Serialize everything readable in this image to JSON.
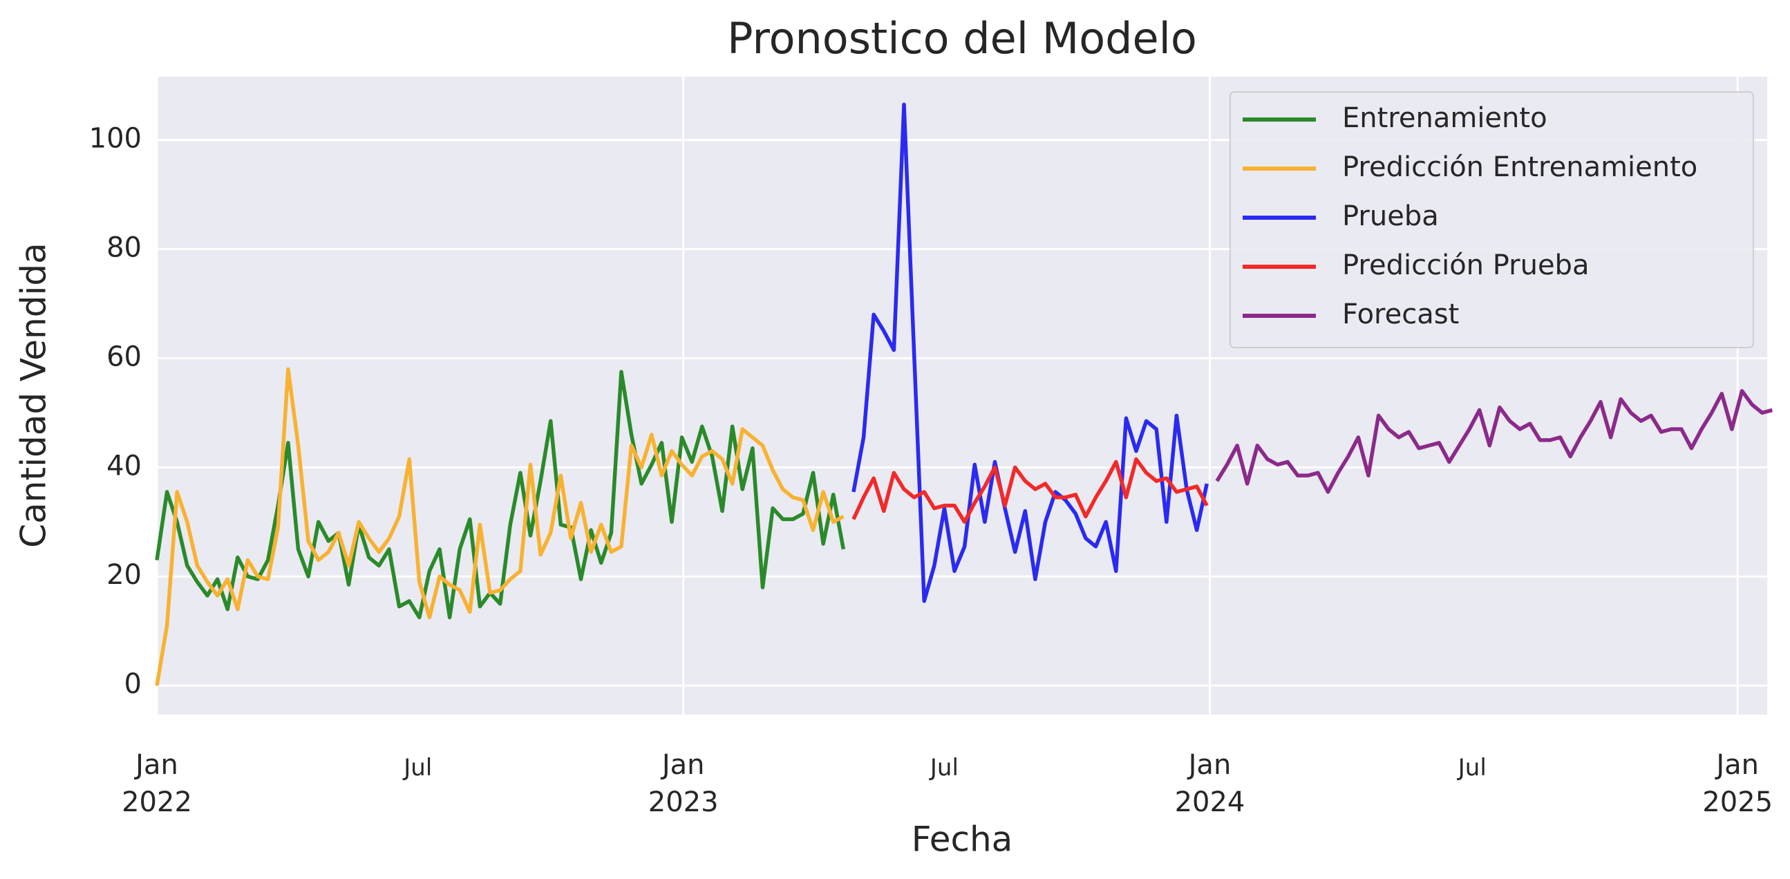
{
  "chart_data": {
    "type": "line",
    "title": "Pronostico del Modelo",
    "xlabel": "Fecha",
    "ylabel": "Cantidad Vendida",
    "xlim": [
      0,
      159.5
    ],
    "ylim": [
      -5.3,
      111.6
    ],
    "yticks": [
      0,
      20,
      40,
      60,
      80,
      100
    ],
    "xticks": [
      {
        "value": 0,
        "label": "Jan\n2022"
      },
      {
        "value": 52.14,
        "label": "Jan\n2023"
      },
      {
        "value": 104.29,
        "label": "Jan\n2024"
      },
      {
        "value": 156.57,
        "label": "Jan\n2025"
      }
    ],
    "xticks_minor": [
      {
        "value": 25.86,
        "label": "Jul"
      },
      {
        "value": 78,
        "label": "Jul"
      },
      {
        "value": 130.29,
        "label": "Jul"
      }
    ],
    "grid": true,
    "legend": "upper right",
    "series": [
      {
        "name": "Entrenamiento",
        "color": "#2a8a2a",
        "x": [
          0,
          1,
          2,
          3,
          4,
          5,
          6,
          7,
          8,
          9,
          10,
          11,
          12,
          13,
          14,
          15,
          16,
          17,
          18,
          19,
          20,
          21,
          22,
          23,
          24,
          25,
          26,
          27,
          28,
          29,
          30,
          31,
          32,
          33,
          34,
          35,
          36,
          37,
          38,
          39,
          40,
          41,
          42,
          43,
          44,
          45,
          46,
          47,
          48,
          49,
          50,
          51,
          52,
          53,
          54,
          55,
          56,
          57,
          58,
          59,
          60,
          61,
          62,
          63,
          64,
          65,
          66,
          67,
          68
        ],
        "values": [
          23,
          35.5,
          30,
          22,
          19,
          16.5,
          19.5,
          14,
          23.5,
          20,
          19.5,
          23,
          33,
          44.5,
          25,
          20,
          30,
          26.5,
          28,
          18.5,
          29.5,
          23.5,
          22,
          25,
          14.5,
          15.5,
          12.5,
          21,
          25,
          12.5,
          25,
          30.5,
          14.5,
          17,
          15,
          29.5,
          39,
          27.5,
          37.5,
          48.5,
          29.5,
          29,
          19.5,
          28.5,
          22.5,
          28,
          57.5,
          46,
          37,
          40.5,
          44.5,
          30,
          45.5,
          41,
          47.5,
          42,
          32,
          47.5,
          36,
          43.5,
          18,
          32.5,
          30.5,
          30.5,
          31.5,
          39,
          26,
          35,
          25
        ]
      },
      {
        "name": "Predicción Entrenamiento",
        "color": "#f8b232",
        "x": [
          0,
          1,
          2,
          3,
          4,
          5,
          6,
          7,
          8,
          9,
          10,
          11,
          12,
          13,
          14,
          15,
          16,
          17,
          18,
          19,
          20,
          21,
          22,
          23,
          24,
          25,
          26,
          27,
          28,
          29,
          30,
          31,
          32,
          33,
          34,
          35,
          36,
          37,
          38,
          39,
          40,
          41,
          42,
          43,
          44,
          45,
          46,
          47,
          48,
          49,
          50,
          51,
          52,
          53,
          54,
          55,
          56,
          57,
          58,
          59,
          60,
          61,
          62,
          63,
          64,
          65,
          66,
          67,
          68
        ],
        "values": [
          0,
          11,
          35.5,
          30,
          22,
          19,
          16.5,
          19.5,
          14,
          23,
          20,
          19.5,
          29,
          58,
          44,
          26.5,
          23,
          24.5,
          28,
          22,
          30,
          27,
          24.5,
          27,
          31,
          41.5,
          19,
          12.5,
          20,
          18.5,
          17.5,
          13.5,
          29.5,
          17,
          17.5,
          19.5,
          21,
          40.5,
          24,
          28,
          38.5,
          27,
          33.5,
          24.5,
          29.5,
          24.5,
          25.5,
          44,
          40,
          46,
          38.5,
          43,
          40.5,
          38.5,
          42,
          43,
          41.5,
          37,
          47,
          45.5,
          44,
          39.5,
          36,
          34.5,
          34,
          28.5,
          35.5,
          30,
          31
        ]
      },
      {
        "name": "Prueba",
        "color": "#2a2af2",
        "x": [
          69,
          70,
          71,
          72,
          73,
          74,
          75,
          76,
          77,
          78,
          79,
          80,
          81,
          82,
          83,
          84,
          85,
          86,
          87,
          88,
          89,
          90,
          91,
          92,
          93,
          94,
          95,
          96,
          97,
          98,
          99,
          100,
          101,
          102,
          103,
          104
        ],
        "values": [
          35.5,
          45.5,
          68,
          65,
          61.5,
          106.5,
          61,
          15.5,
          22,
          32.5,
          21,
          25.5,
          40.5,
          30,
          41,
          32.5,
          24.5,
          32,
          19.5,
          30,
          35.5,
          34,
          31.5,
          27,
          25.5,
          30,
          21,
          49,
          43,
          48.5,
          47,
          30,
          49.5,
          36,
          28.5,
          37
        ]
      },
      {
        "name": "Predicción Prueba",
        "color": "#f22a2a",
        "x": [
          69,
          70,
          71,
          72,
          73,
          74,
          75,
          76,
          77,
          78,
          79,
          80,
          81,
          82,
          83,
          84,
          85,
          86,
          87,
          88,
          89,
          90,
          91,
          92,
          93,
          94,
          95,
          96,
          97,
          98,
          99,
          100,
          101,
          102,
          103,
          104
        ],
        "values": [
          30.5,
          34.5,
          38,
          32,
          39,
          36,
          34.5,
          35.5,
          32.5,
          33,
          33,
          30,
          33.5,
          36.5,
          40,
          33,
          40,
          37.5,
          36,
          37,
          34.5,
          34.5,
          35,
          31,
          34.5,
          37.5,
          41,
          34.5,
          41.5,
          39,
          37.5,
          38,
          35.5,
          36,
          36.5,
          33
        ]
      },
      {
        "name": "Forecast",
        "color": "#8b2a8b",
        "x": [
          105,
          106,
          107,
          108,
          109,
          110,
          111,
          112,
          113,
          114,
          115,
          116,
          117,
          118,
          119,
          120,
          121,
          122,
          123,
          124,
          125,
          126,
          127,
          128,
          129,
          130,
          131,
          132,
          133,
          134,
          135,
          136,
          137,
          138,
          139,
          140,
          141,
          142,
          143,
          144,
          145,
          146,
          147,
          148,
          149,
          150,
          151,
          152,
          153,
          154,
          155,
          156,
          157,
          158,
          159,
          160
        ],
        "values": [
          37.5,
          40.5,
          44,
          37,
          44,
          41.5,
          40.5,
          41,
          38.5,
          38.5,
          39,
          35.5,
          39,
          42,
          45.5,
          38.5,
          49.5,
          47,
          45.5,
          46.5,
          43.5,
          44,
          44.5,
          41,
          44,
          47,
          50.5,
          44,
          51,
          48.5,
          47,
          48,
          45,
          45,
          45.5,
          42,
          45.5,
          48.5,
          52,
          45.5,
          52.5,
          50,
          48.5,
          49.5,
          46.5,
          47,
          47,
          43.5,
          47,
          50,
          53.5,
          47,
          54,
          51.5,
          50,
          50.5
        ]
      }
    ]
  }
}
